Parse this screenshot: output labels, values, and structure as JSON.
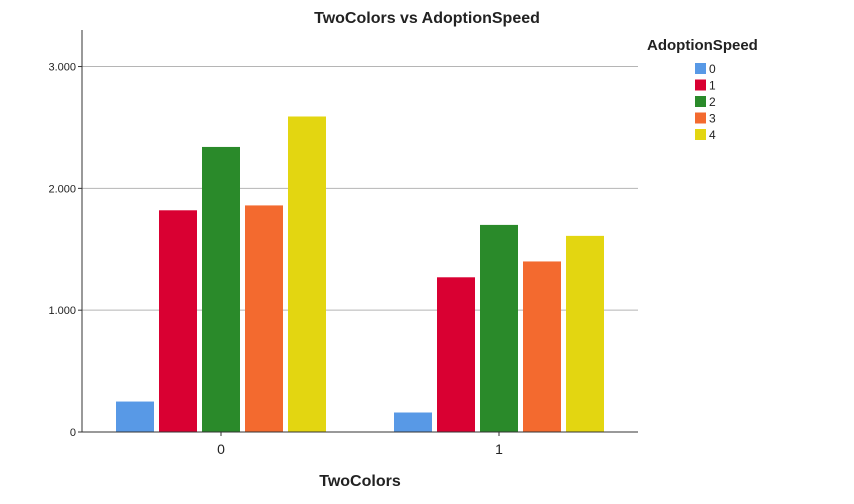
{
  "chart_data": {
    "type": "bar",
    "title": "TwoColors vs AdoptionSpeed",
    "xlabel": "TwoColors",
    "ylabel": "",
    "categories": [
      "0",
      "1"
    ],
    "ylim": [
      0,
      3300
    ],
    "yticks": [
      0,
      1000,
      2000,
      3000
    ],
    "ytick_labels": [
      "0",
      "1.000",
      "2.000",
      "3.000"
    ],
    "grid": true,
    "legend": {
      "title": "AdoptionSpeed",
      "position": "top-right"
    },
    "series": [
      {
        "name": "0",
        "color": "#5899e6",
        "values": [
          250,
          160
        ]
      },
      {
        "name": "1",
        "color": "#d90032",
        "values": [
          1820,
          1270
        ]
      },
      {
        "name": "2",
        "color": "#2a8a2a",
        "values": [
          2340,
          1700
        ]
      },
      {
        "name": "3",
        "color": "#f36a2f",
        "values": [
          1860,
          1400
        ]
      },
      {
        "name": "4",
        "color": "#e3d611",
        "values": [
          2590,
          1610
        ]
      }
    ]
  }
}
